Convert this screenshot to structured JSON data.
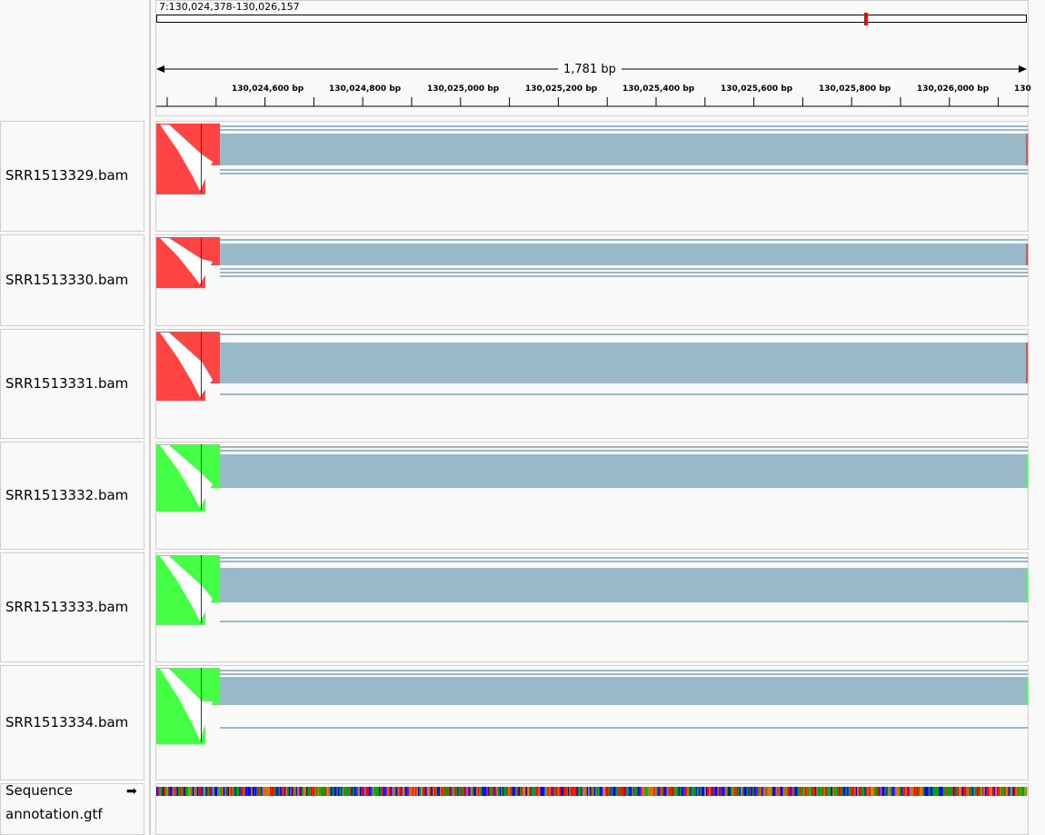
{
  "header": {
    "locus": "7:130,024,378-130,026,157",
    "span_label": "1,781 bp",
    "ticks": [
      "130,024,600 bp",
      "130,024,800 bp",
      "130,025,000 bp",
      "130,025,200 bp",
      "130,025,400 bp",
      "130,025,600 bp",
      "130,025,800 bp",
      "130,026,000 bp",
      "130"
    ]
  },
  "tracks": [
    {
      "name": "SRR1513329.bam",
      "strand_color": "#ff4444"
    },
    {
      "name": "SRR1513330.bam",
      "strand_color": "#ff4444"
    },
    {
      "name": "SRR1513331.bam",
      "strand_color": "#ff4444"
    },
    {
      "name": "SRR1513332.bam",
      "strand_color": "#44ff44"
    },
    {
      "name": "SRR1513333.bam",
      "strand_color": "#44ff44"
    },
    {
      "name": "SRR1513334.bam",
      "strand_color": "#44ff44"
    }
  ],
  "bottom": {
    "sequence_label": "Sequence",
    "annotation_label": "annotation.gtf",
    "arrow": "➡"
  },
  "colors": {
    "read_fill": "#99b8c8",
    "red_reads": "#ff4444",
    "green_reads": "#44ff44",
    "chromosome_marker": "#ff0000"
  }
}
